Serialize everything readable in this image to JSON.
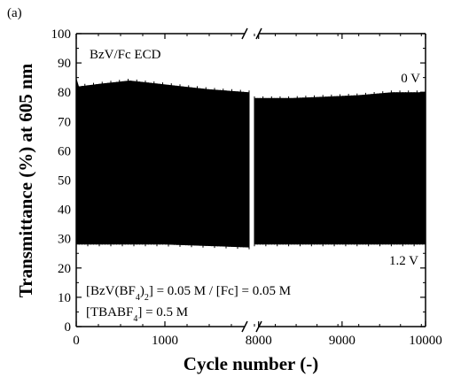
{
  "chart_data": {
    "type": "line",
    "panel_label": "(a)",
    "xlabel": "Cycle number (-)",
    "ylabel": "Transmittance (%) at 605 nm",
    "ylim": [
      0,
      100
    ],
    "y_ticks": [
      "0",
      "10",
      "20",
      "30",
      "40",
      "50",
      "60",
      "70",
      "80",
      "90",
      "100"
    ],
    "x_axis_broken": true,
    "x_segments": [
      {
        "range": [
          0,
          1950
        ],
        "ticks": [
          "0",
          "1000"
        ],
        "tick_values": [
          0,
          1000
        ]
      },
      {
        "range": [
          7950,
          10000
        ],
        "ticks": [
          "8000",
          "9000",
          "10000"
        ],
        "tick_values": [
          8000,
          9000,
          10000
        ]
      }
    ],
    "series": [
      {
        "upper_envelope": [
          [
            0,
            85
          ],
          [
            30,
            82
          ],
          [
            300,
            83
          ],
          [
            600,
            84
          ],
          [
            900,
            83
          ],
          [
            1200,
            82
          ],
          [
            1500,
            81
          ],
          [
            1950,
            80
          ],
          [
            7950,
            78
          ],
          [
            8400,
            78
          ],
          [
            8800,
            78.5
          ],
          [
            9200,
            79
          ],
          [
            9600,
            80
          ],
          [
            10000,
            80
          ]
        ],
        "lower_envelope": [
          [
            0,
            28
          ],
          [
            500,
            28
          ],
          [
            1000,
            28
          ],
          [
            1500,
            27.5
          ],
          [
            1950,
            27
          ],
          [
            7950,
            28
          ],
          [
            8500,
            28
          ],
          [
            9000,
            28
          ],
          [
            9500,
            28
          ],
          [
            10000,
            28
          ]
        ]
      }
    ],
    "annotations": {
      "sample": "BzV/Fc ECD",
      "top_voltage": "0 V",
      "bottom_voltage": "1.2 V",
      "condition_1": "[BzV(BF4)2] = 0.05 M / [Fc] = 0.05 M",
      "condition_2": "[TBABF4] = 0.5 M"
    },
    "grid": false,
    "legend": "none"
  }
}
